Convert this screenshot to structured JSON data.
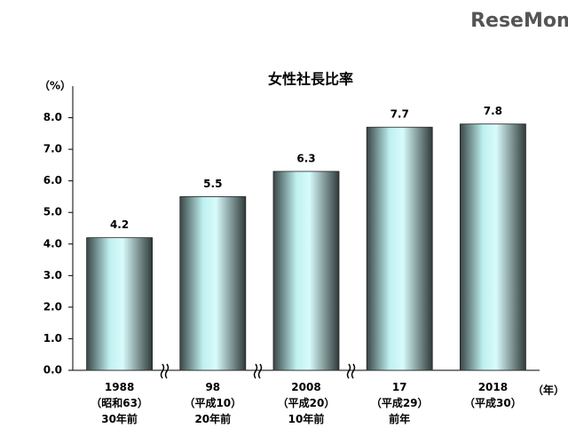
{
  "watermark": "ReseMom",
  "chart_data": {
    "type": "bar",
    "title": "女性社長比率",
    "y_unit": "（%）",
    "x_unit": "（年）",
    "categories": [
      "1988\n（昭和63）\n30年前",
      "98\n（平成10）\n20年前",
      "2008\n（平成20）\n10年前",
      "17\n（平成29）\n前年",
      "2018\n（平成30）"
    ],
    "values": [
      4.2,
      5.5,
      6.3,
      7.7,
      7.8
    ],
    "ylim": [
      0,
      9
    ],
    "yticks": [
      {
        "value": 0,
        "label": "0.0"
      },
      {
        "value": 1,
        "label": "1.0"
      },
      {
        "value": 2,
        "label": "2.0"
      },
      {
        "value": 3,
        "label": "3.0"
      },
      {
        "value": 4,
        "label": "4.0"
      },
      {
        "value": 5,
        "label": "5.0"
      },
      {
        "value": 6,
        "label": "6.0"
      },
      {
        "value": 7,
        "label": "7.0"
      },
      {
        "value": 8,
        "label": "8.0"
      }
    ],
    "grid": false
  }
}
